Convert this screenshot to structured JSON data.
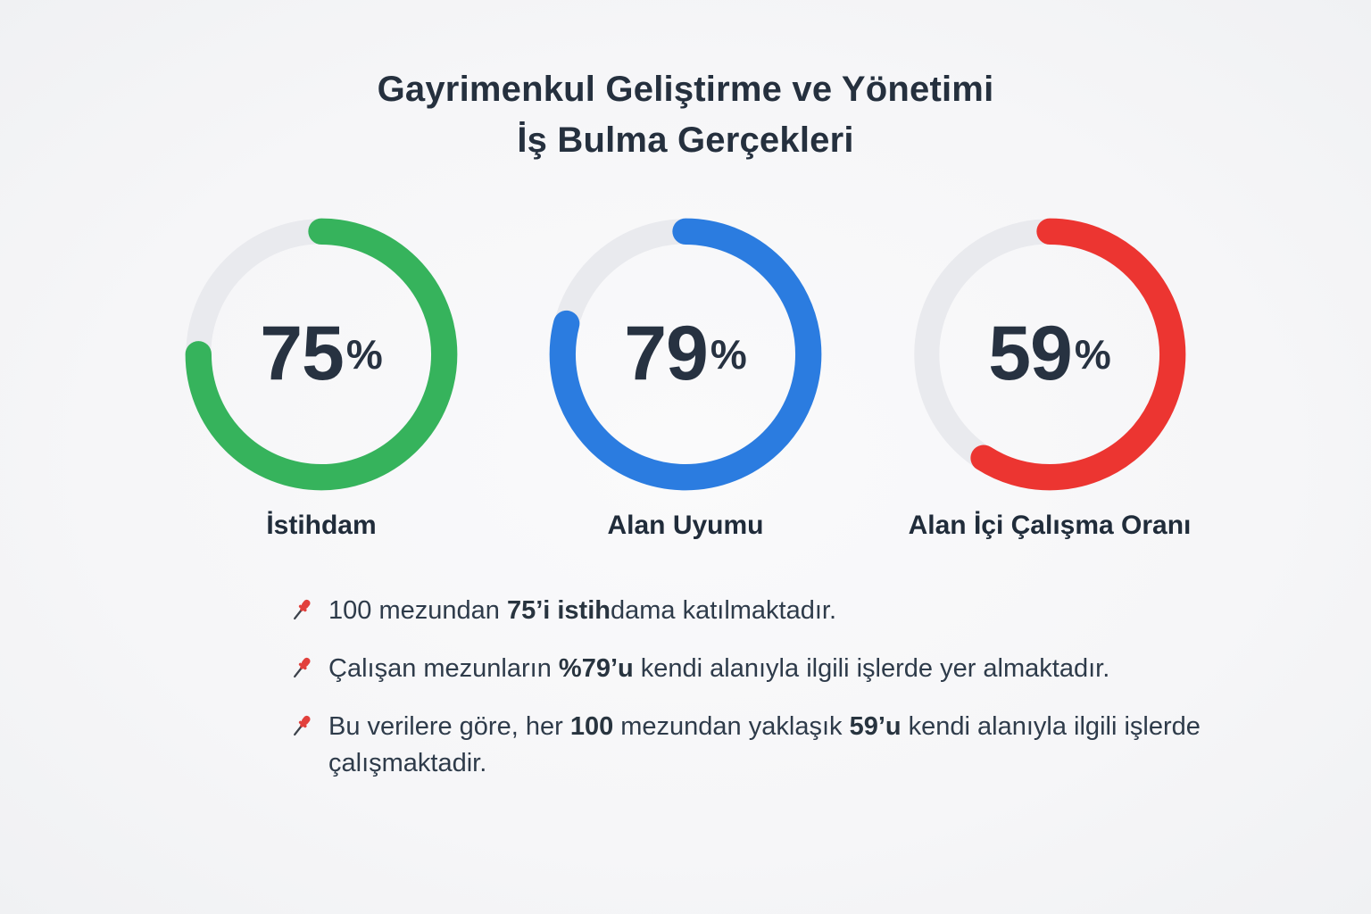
{
  "title": {
    "line1": "Gayrimenkul Geliştirme ve Yönetimi",
    "line2": "İş Bulma Gerçekleri"
  },
  "chart_data": {
    "type": "donut",
    "title": "Gayrimenkul Geliştirme ve Yönetimi İş Bulma Gerçekleri",
    "value_range": [
      0,
      100
    ],
    "track_color": "#e9eaee",
    "start_angle": "top",
    "direction": "clockwise",
    "series": [
      {
        "label": "İstihdam",
        "value": 75,
        "display": "75",
        "unit": "%",
        "color": "#36b35c"
      },
      {
        "label": "Alan Uyumu",
        "value": 79,
        "display": "79",
        "unit": "%",
        "color": "#2b7ce0"
      },
      {
        "label": "Alan İçi Çalışma Oranı",
        "value": 59,
        "display": "59",
        "unit": "%",
        "color": "#ec3531"
      }
    ]
  },
  "notes": [
    {
      "segments": [
        {
          "text": "100 mezundan ",
          "bold": false
        },
        {
          "text": "75’i istih",
          "bold": true
        },
        {
          "text": "dama katılmaktadır.",
          "bold": false
        }
      ]
    },
    {
      "segments": [
        {
          "text": "Çalışan mezunların ",
          "bold": false
        },
        {
          "text": "%79’u",
          "bold": true
        },
        {
          "text": " kendi alanıyla ilgili işlerde yer almaktadır.",
          "bold": false
        }
      ]
    },
    {
      "segments": [
        {
          "text": "Bu verilere göre, her ",
          "bold": false
        },
        {
          "text": "100",
          "bold": true
        },
        {
          "text": " mezundan yaklaşık ",
          "bold": false
        },
        {
          "text": "59’u",
          "bold": true
        },
        {
          "text": " kendi alanıyla ilgili işlerde çalışmaktadir.",
          "bold": false
        }
      ]
    }
  ],
  "icons": {
    "pin": "pushpin-icon",
    "pin_color": "#e2403c",
    "pin_needle_color": "#3c424b"
  }
}
